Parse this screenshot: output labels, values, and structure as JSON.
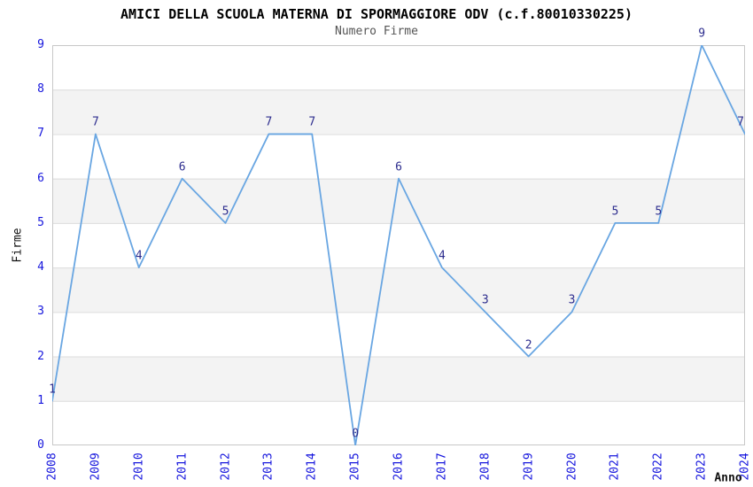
{
  "chart_data": {
    "type": "line",
    "title": "AMICI DELLA SCUOLA MATERNA DI SPORMAGGIORE ODV (c.f.80010330225)",
    "subtitle": "Numero Firme",
    "xlabel": "Anno",
    "ylabel": "Firme",
    "categories": [
      "2008",
      "2009",
      "2010",
      "2011",
      "2012",
      "2013",
      "2014",
      "2015",
      "2016",
      "2017",
      "2018",
      "2019",
      "2020",
      "2021",
      "2022",
      "2023",
      "2024"
    ],
    "values": [
      1,
      7,
      4,
      6,
      5,
      7,
      7,
      0,
      6,
      4,
      3,
      2,
      3,
      5,
      5,
      9,
      7
    ],
    "point_labels": [
      "1",
      "7",
      "4",
      "6",
      "5",
      "7",
      "7",
      "0",
      "6",
      "4",
      "3",
      "2",
      "3",
      "5",
      "5",
      "9",
      "7"
    ],
    "y_ticks": [
      "0",
      "1",
      "2",
      "3",
      "4",
      "5",
      "6",
      "7",
      "8",
      "9"
    ],
    "ylim": [
      0,
      9
    ],
    "grid": "horizontal-only",
    "band_fill": "alternating gray bands on 1-2, 3-4, 5-6, 7-8",
    "legend": "none",
    "colors": {
      "line": "#69a6e2",
      "point_label": "#2d2d8e",
      "tick_label": "#1515dd",
      "title": "#000000",
      "subtitle": "#555555",
      "band": "#f3f3f3",
      "gridline": "#dcdcdc",
      "border": "#c8c8c8",
      "background": "#ffffff"
    }
  }
}
